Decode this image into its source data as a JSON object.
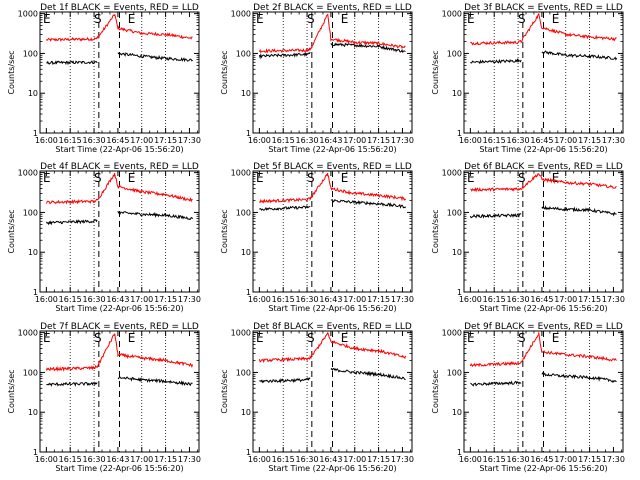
{
  "chart_data": [
    {
      "type": "line",
      "title": "Det 1f BLACK = Events, RED = LLD",
      "xlabel": "Start Time (22-Apr-06 15:56:20)",
      "ylabel": "Counts/sec",
      "x_tick_labels": [
        "16:00",
        "16:15",
        "16:30",
        "16:45",
        "17:00",
        "17:15",
        "17:30"
      ],
      "y_tick_labels": [
        "1",
        "10",
        "100",
        "1000"
      ],
      "ylim": [
        1,
        1100
      ],
      "x_scale": "time",
      "y_scale": "log",
      "markers": [
        "E",
        "S",
        "E"
      ],
      "series": [
        {
          "color": "#ff0000",
          "x": [
            "16:00",
            "16:30",
            "16:32",
            "16:43",
            "16:45",
            "17:00",
            "17:15",
            "17:32"
          ],
          "y": [
            220,
            230,
            240,
            950,
            430,
            320,
            300,
            240
          ]
        },
        {
          "color": "#000000",
          "x": [
            "16:00",
            "16:30",
            "16:32",
            "16:43",
            "16:45",
            "17:00",
            "17:15",
            "17:32"
          ],
          "y": [
            58,
            60,
            62,
            null,
            100,
            85,
            75,
            68
          ]
        }
      ]
    },
    {
      "type": "line",
      "title": "Det 2f BLACK = Events, RED = LLD",
      "xlabel": "Start Time (22-Apr-06 15:56:20)",
      "ylabel": "Counts/sec",
      "x_tick_labels": [
        "16:00",
        "16:15",
        "16:30",
        "16:43",
        "17:00",
        "17:15",
        "17:30"
      ],
      "y_tick_labels": [
        "1",
        "10",
        "100",
        "1000"
      ],
      "ylim": [
        1,
        1100
      ],
      "x_scale": "time",
      "y_scale": "log",
      "markers": [
        "E",
        "S",
        "E"
      ],
      "series": [
        {
          "color": "#ff0000",
          "x": [
            "16:00",
            "16:30",
            "16:32",
            "16:43",
            "16:45",
            "17:00",
            "17:15",
            "17:32"
          ],
          "y": [
            115,
            120,
            125,
            950,
            230,
            190,
            180,
            140
          ]
        },
        {
          "color": "#000000",
          "x": [
            "16:00",
            "16:30",
            "16:32",
            "16:43",
            "16:45",
            "17:00",
            "17:15",
            "17:32"
          ],
          "y": [
            85,
            95,
            100,
            null,
            170,
            160,
            150,
            110
          ]
        }
      ]
    },
    {
      "type": "line",
      "title": "Det 3f BLACK = Events, RED = LLD",
      "xlabel": "Start Time (22-Apr-06 15:56:20)",
      "ylabel": "Counts/sec",
      "x_tick_labels": [
        "16:00",
        "16:15",
        "16:30",
        "16:45",
        "17:00",
        "17:15",
        "17:30"
      ],
      "y_tick_labels": [
        "1",
        "10",
        "100",
        "1000"
      ],
      "ylim": [
        1,
        1100
      ],
      "x_scale": "time",
      "y_scale": "log",
      "markers": [
        "E",
        "S",
        "E"
      ],
      "series": [
        {
          "color": "#ff0000",
          "x": [
            "16:00",
            "16:30",
            "16:32",
            "16:43",
            "16:45",
            "17:00",
            "17:15",
            "17:32"
          ],
          "y": [
            180,
            190,
            200,
            950,
            450,
            300,
            260,
            230
          ]
        },
        {
          "color": "#000000",
          "x": [
            "16:00",
            "16:30",
            "16:32",
            "16:43",
            "16:45",
            "17:00",
            "17:15",
            "17:32"
          ],
          "y": [
            60,
            65,
            68,
            null,
            110,
            90,
            85,
            75
          ]
        }
      ]
    },
    {
      "type": "line",
      "title": "Det 4f BLACK = Events, RED = LLD",
      "xlabel": "Start Time (22-Apr-06 15:56:20)",
      "ylabel": "Counts/sec",
      "x_tick_labels": [
        "16:00",
        "16:15",
        "16:30",
        "16:43",
        "17:00",
        "17:15",
        "17:30"
      ],
      "y_tick_labels": [
        "1",
        "10",
        "100",
        "1000"
      ],
      "ylim": [
        1,
        1100
      ],
      "x_scale": "time",
      "y_scale": "log",
      "markers": [
        "E",
        "S",
        "E"
      ],
      "series": [
        {
          "color": "#ff0000",
          "x": [
            "16:00",
            "16:30",
            "16:32",
            "16:43",
            "16:45",
            "17:00",
            "17:15",
            "17:32"
          ],
          "y": [
            180,
            190,
            200,
            950,
            450,
            330,
            280,
            200
          ]
        },
        {
          "color": "#000000",
          "x": [
            "16:00",
            "16:30",
            "16:32",
            "16:43",
            "16:45",
            "17:00",
            "17:15",
            "17:32"
          ],
          "y": [
            55,
            60,
            65,
            null,
            100,
            90,
            85,
            70
          ]
        }
      ]
    },
    {
      "type": "line",
      "title": "Det 5f BLACK = Events, RED = LLD",
      "xlabel": "Start Time (22-Apr-06 15:56:20)",
      "ylabel": "Counts/sec",
      "x_tick_labels": [
        "16:00",
        "16:15",
        "16:30",
        "16:43",
        "17:00",
        "17:15",
        "17:30"
      ],
      "y_tick_labels": [
        "1",
        "10",
        "100",
        "1000"
      ],
      "ylim": [
        1,
        1100
      ],
      "x_scale": "time",
      "y_scale": "log",
      "markers": [
        "E",
        "S",
        "E"
      ],
      "series": [
        {
          "color": "#ff0000",
          "x": [
            "16:00",
            "16:30",
            "16:32",
            "16:43",
            "16:45",
            "17:00",
            "17:15",
            "17:32"
          ],
          "y": [
            190,
            210,
            220,
            950,
            400,
            300,
            270,
            220
          ]
        },
        {
          "color": "#000000",
          "x": [
            "16:00",
            "16:30",
            "16:32",
            "16:43",
            "16:45",
            "17:00",
            "17:15",
            "17:32"
          ],
          "y": [
            120,
            135,
            140,
            null,
            200,
            180,
            165,
            140
          ]
        }
      ]
    },
    {
      "type": "line",
      "title": "Det 6f BLACK = Events, RED = LLD",
      "xlabel": "Start Time (22-Apr-06 15:56:20)",
      "ylabel": "Counts/sec",
      "x_tick_labels": [
        "16:00",
        "16:15",
        "16:30",
        "16:45",
        "17:00",
        "17:15",
        "17:30"
      ],
      "y_tick_labels": [
        "1",
        "10",
        "100",
        "1000"
      ],
      "ylim": [
        1,
        1100
      ],
      "x_scale": "time",
      "y_scale": "log",
      "markers": [
        "E",
        "S",
        "E"
      ],
      "series": [
        {
          "color": "#ff0000",
          "x": [
            "16:00",
            "16:30",
            "16:32",
            "16:43",
            "16:45",
            "17:00",
            "17:15",
            "17:32"
          ],
          "y": [
            370,
            390,
            400,
            950,
            680,
            560,
            520,
            420
          ]
        },
        {
          "color": "#000000",
          "x": [
            "16:00",
            "16:30",
            "16:32",
            "16:43",
            "16:45",
            "17:00",
            "17:15",
            "17:32"
          ],
          "y": [
            80,
            85,
            90,
            null,
            130,
            120,
            115,
            90
          ]
        }
      ]
    },
    {
      "type": "line",
      "title": "Det 7f BLACK = Events, RED = LLD",
      "xlabel": "Start Time (22-Apr-06 15:56:20)",
      "ylabel": "Counts/sec",
      "x_tick_labels": [
        "16:00",
        "16:15",
        "16:30",
        "16:43",
        "17:00",
        "17:15",
        "17:30"
      ],
      "y_tick_labels": [
        "1",
        "10",
        "100",
        "1000"
      ],
      "ylim": [
        1,
        1100
      ],
      "x_scale": "time",
      "y_scale": "log",
      "markers": [
        "E",
        "S",
        "E"
      ],
      "series": [
        {
          "color": "#ff0000",
          "x": [
            "16:00",
            "16:30",
            "16:32",
            "16:43",
            "16:45",
            "17:00",
            "17:15",
            "17:32"
          ],
          "y": [
            120,
            130,
            140,
            950,
            280,
            230,
            200,
            150
          ]
        },
        {
          "color": "#000000",
          "x": [
            "16:00",
            "16:30",
            "16:32",
            "16:43",
            "16:45",
            "17:00",
            "17:15",
            "17:32"
          ],
          "y": [
            50,
            52,
            55,
            null,
            75,
            65,
            60,
            50
          ]
        }
      ]
    },
    {
      "type": "line",
      "title": "Det 8f BLACK = Events, RED = LLD",
      "xlabel": "Start Time (22-Apr-06 15:56:20)",
      "ylabel": "Counts/sec",
      "x_tick_labels": [
        "16:00",
        "16:15",
        "16:30",
        "16:43",
        "17:00",
        "17:15",
        "17:30"
      ],
      "y_tick_labels": [
        "1",
        "10",
        "100",
        "1000"
      ],
      "ylim": [
        1,
        1100
      ],
      "x_scale": "time",
      "y_scale": "log",
      "markers": [
        "E",
        "S",
        "E"
      ],
      "series": [
        {
          "color": "#ff0000",
          "x": [
            "16:00",
            "16:30",
            "16:32",
            "16:43",
            "16:45",
            "17:00",
            "17:15",
            "17:32"
          ],
          "y": [
            200,
            220,
            230,
            950,
            600,
            400,
            350,
            240
          ]
        },
        {
          "color": "#000000",
          "x": [
            "16:00",
            "16:30",
            "16:32",
            "16:43",
            "16:45",
            "17:00",
            "17:15",
            "17:32"
          ],
          "y": [
            60,
            65,
            70,
            null,
            120,
            100,
            90,
            70
          ]
        }
      ]
    },
    {
      "type": "line",
      "title": "Det 9f BLACK = Events, RED = LLD",
      "xlabel": "Start Time (22-Apr-06 15:56:20)",
      "ylabel": "Counts/sec",
      "x_tick_labels": [
        "16:00",
        "16:15",
        "16:30",
        "16:45",
        "17:00",
        "17:15",
        "17:30"
      ],
      "y_tick_labels": [
        "1",
        "10",
        "100",
        "1000"
      ],
      "ylim": [
        1,
        1100
      ],
      "x_scale": "time",
      "y_scale": "log",
      "markers": [
        "E",
        "S",
        "E"
      ],
      "series": [
        {
          "color": "#ff0000",
          "x": [
            "16:00",
            "16:30",
            "16:32",
            "16:43",
            "16:45",
            "17:00",
            "17:15",
            "17:32"
          ],
          "y": [
            150,
            170,
            180,
            950,
            330,
            280,
            250,
            200
          ]
        },
        {
          "color": "#000000",
          "x": [
            "16:00",
            "16:30",
            "16:32",
            "16:43",
            "16:45",
            "17:00",
            "17:15",
            "17:32"
          ],
          "y": [
            50,
            55,
            58,
            null,
            90,
            80,
            75,
            60
          ]
        }
      ]
    }
  ]
}
